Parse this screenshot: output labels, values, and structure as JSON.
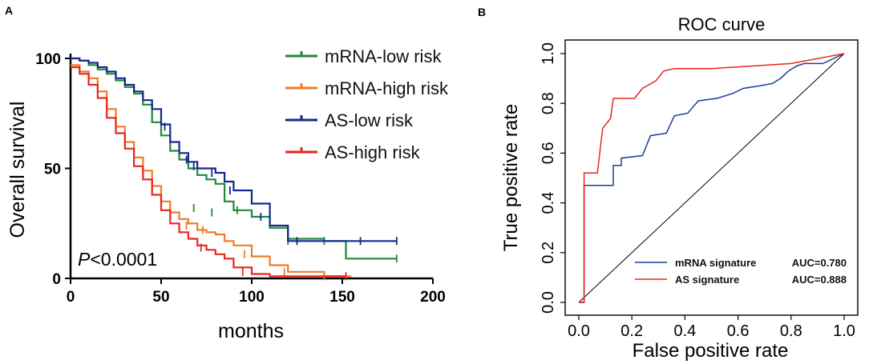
{
  "panels": {
    "a_label": "A",
    "b_label": "B"
  },
  "chart_data": [
    {
      "type": "line",
      "subtype": "kaplan-meier",
      "title": "",
      "xlabel": "months",
      "ylabel": "Overall survival",
      "xlim": [
        0,
        200
      ],
      "ylim": [
        0,
        100
      ],
      "xticks": [
        "0",
        "50",
        "100",
        "150",
        "200"
      ],
      "yticks": [
        "0",
        "50",
        "100"
      ],
      "annotation": {
        "italic": "P",
        "text": "<0.0001"
      },
      "legend_position": "top-right",
      "series": [
        {
          "name": "mRNA-low risk",
          "color": "#1e8a3a",
          "points": [
            [
              0,
              100
            ],
            [
              5,
              99
            ],
            [
              10,
              97
            ],
            [
              15,
              95
            ],
            [
              20,
              93
            ],
            [
              25,
              90
            ],
            [
              30,
              87
            ],
            [
              35,
              84
            ],
            [
              40,
              79
            ],
            [
              45,
              71
            ],
            [
              50,
              65
            ],
            [
              55,
              58
            ],
            [
              60,
              54
            ],
            [
              65,
              50
            ],
            [
              70,
              47
            ],
            [
              75,
              45
            ],
            [
              80,
              43
            ],
            [
              85,
              35
            ],
            [
              90,
              31
            ],
            [
              100,
              28
            ],
            [
              110,
              23
            ],
            [
              120,
              18
            ],
            [
              140,
              17
            ],
            [
              150,
              17
            ],
            [
              152,
              9
            ],
            [
              168,
              9
            ],
            [
              180,
              9
            ]
          ],
          "censors": [
            [
              68,
              32
            ],
            [
              78,
              30
            ],
            [
              92,
              31
            ],
            [
              120,
              17
            ],
            [
              140,
              17
            ],
            [
              180,
              9
            ]
          ]
        },
        {
          "name": "mRNA-high risk",
          "color": "#f07a28",
          "points": [
            [
              0,
              97
            ],
            [
              5,
              94
            ],
            [
              10,
              91
            ],
            [
              15,
              85
            ],
            [
              20,
              77
            ],
            [
              25,
              69
            ],
            [
              30,
              62
            ],
            [
              35,
              55
            ],
            [
              40,
              49
            ],
            [
              45,
              42
            ],
            [
              50,
              35
            ],
            [
              55,
              30
            ],
            [
              60,
              27
            ],
            [
              65,
              25
            ],
            [
              70,
              22
            ],
            [
              75,
              21
            ],
            [
              80,
              20
            ],
            [
              85,
              17
            ],
            [
              90,
              15
            ],
            [
              100,
              10
            ],
            [
              110,
              6
            ],
            [
              120,
              3
            ],
            [
              140,
              1
            ],
            [
              155,
              1
            ]
          ],
          "censors": [
            [
              64,
              24
            ],
            [
              73,
              22
            ],
            [
              96,
              11
            ],
            [
              118,
              3
            ],
            [
              140,
              1
            ]
          ]
        },
        {
          "name": "AS-low risk",
          "color": "#14288c",
          "points": [
            [
              0,
              100
            ],
            [
              5,
              99
            ],
            [
              10,
              98
            ],
            [
              15,
              96
            ],
            [
              20,
              94
            ],
            [
              25,
              91
            ],
            [
              30,
              88
            ],
            [
              35,
              85
            ],
            [
              40,
              81
            ],
            [
              45,
              77
            ],
            [
              50,
              70
            ],
            [
              55,
              62
            ],
            [
              60,
              57
            ],
            [
              65,
              53
            ],
            [
              70,
              50
            ],
            [
              80,
              48
            ],
            [
              85,
              44
            ],
            [
              90,
              40
            ],
            [
              100,
              34
            ],
            [
              110,
              24
            ],
            [
              120,
              17
            ],
            [
              150,
              17
            ],
            [
              180,
              17
            ]
          ],
          "censors": [
            [
              52,
              69
            ],
            [
              64,
              54
            ],
            [
              68,
              51
            ],
            [
              78,
              48
            ],
            [
              88,
              40
            ],
            [
              105,
              28
            ],
            [
              125,
              17
            ],
            [
              160,
              17
            ],
            [
              180,
              17
            ]
          ]
        },
        {
          "name": "AS-high risk",
          "color": "#e8261e",
          "points": [
            [
              0,
              96
            ],
            [
              5,
              93
            ],
            [
              10,
              88
            ],
            [
              15,
              82
            ],
            [
              20,
              73
            ],
            [
              25,
              66
            ],
            [
              30,
              59
            ],
            [
              35,
              51
            ],
            [
              40,
              45
            ],
            [
              45,
              38
            ],
            [
              50,
              31
            ],
            [
              55,
              25
            ],
            [
              60,
              21
            ],
            [
              65,
              18
            ],
            [
              70,
              15
            ],
            [
              75,
              13
            ],
            [
              80,
              11
            ],
            [
              85,
              9
            ],
            [
              90,
              5
            ],
            [
              100,
              2
            ],
            [
              110,
              1
            ],
            [
              152,
              1
            ]
          ],
          "censors": [
            [
              72,
              14
            ],
            [
              95,
              3
            ],
            [
              152,
              1
            ]
          ]
        }
      ]
    },
    {
      "type": "line",
      "subtype": "roc",
      "title": "ROC curve",
      "xlabel": "False positive rate",
      "ylabel": "True positive rate",
      "xlim": [
        0,
        1
      ],
      "ylim": [
        0,
        1
      ],
      "xticks": [
        "0.0",
        "0.2",
        "0.4",
        "0.6",
        "0.8",
        "1.0"
      ],
      "yticks": [
        "0.0",
        "0.2",
        "0.4",
        "0.6",
        "0.8",
        "1.0"
      ],
      "legend_position": "bottom-right",
      "series": [
        {
          "name": "mRNA signature",
          "auc_label": "AUC=0.780",
          "color": "#1a3c9c",
          "points": [
            [
              0.0,
              0.0
            ],
            [
              0.02,
              0.0
            ],
            [
              0.02,
              0.47
            ],
            [
              0.13,
              0.47
            ],
            [
              0.13,
              0.55
            ],
            [
              0.16,
              0.55
            ],
            [
              0.16,
              0.58
            ],
            [
              0.24,
              0.59
            ],
            [
              0.27,
              0.67
            ],
            [
              0.33,
              0.68
            ],
            [
              0.36,
              0.75
            ],
            [
              0.41,
              0.76
            ],
            [
              0.45,
              0.81
            ],
            [
              0.52,
              0.82
            ],
            [
              0.58,
              0.84
            ],
            [
              0.62,
              0.86
            ],
            [
              0.68,
              0.87
            ],
            [
              0.73,
              0.88
            ],
            [
              0.76,
              0.9
            ],
            [
              0.79,
              0.93
            ],
            [
              0.82,
              0.95
            ],
            [
              0.85,
              0.96
            ],
            [
              0.92,
              0.96
            ],
            [
              1.0,
              1.0
            ]
          ]
        },
        {
          "name": "AS signature",
          "auc_label": "AUC=0.888",
          "color": "#e8261e",
          "points": [
            [
              0.0,
              0.0
            ],
            [
              0.02,
              0.0
            ],
            [
              0.02,
              0.52
            ],
            [
              0.07,
              0.52
            ],
            [
              0.09,
              0.7
            ],
            [
              0.12,
              0.74
            ],
            [
              0.13,
              0.82
            ],
            [
              0.21,
              0.82
            ],
            [
              0.24,
              0.86
            ],
            [
              0.29,
              0.89
            ],
            [
              0.32,
              0.93
            ],
            [
              0.36,
              0.94
            ],
            [
              0.5,
              0.94
            ],
            [
              0.65,
              0.95
            ],
            [
              0.8,
              0.96
            ],
            [
              0.9,
              0.98
            ],
            [
              1.0,
              1.0
            ]
          ]
        }
      ]
    }
  ]
}
